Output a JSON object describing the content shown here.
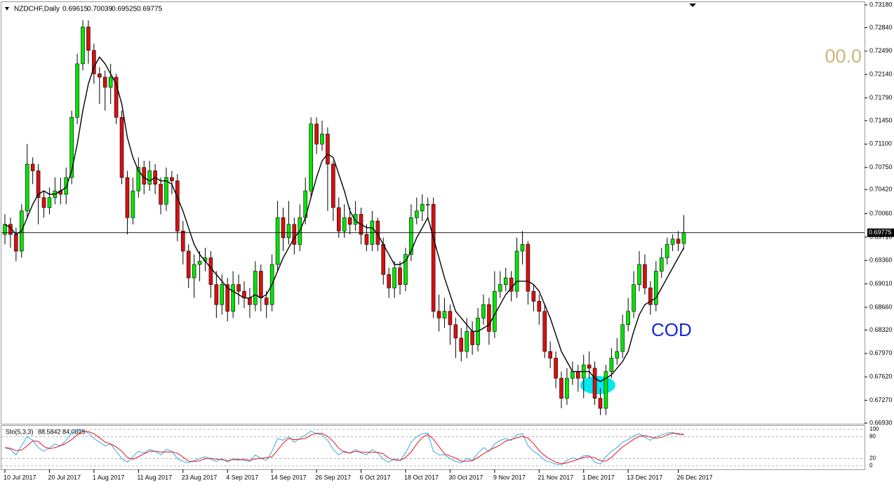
{
  "chart_data": {
    "type": "candlestick",
    "title": "NZDCHF,Daily",
    "categories": [
      "10 Jul 2017",
      null,
      null,
      null,
      null,
      null,
      null,
      null,
      "20 Jul 2017",
      null,
      null,
      null,
      null,
      null,
      null,
      null,
      "1 Aug 2017",
      null,
      null,
      null,
      null,
      null,
      null,
      null,
      "11 Aug 2017",
      null,
      null,
      null,
      null,
      null,
      null,
      null,
      "23 Aug 2017",
      null,
      null,
      null,
      null,
      null,
      null,
      null,
      "4 Sep 2017",
      null,
      null,
      null,
      null,
      null,
      null,
      null,
      "14 Sep 2017",
      null,
      null,
      null,
      null,
      null,
      null,
      null,
      "26 Sep 2017",
      null,
      null,
      null,
      null,
      null,
      null,
      null,
      "6 Oct 2017",
      null,
      null,
      null,
      null,
      null,
      null,
      null,
      "18 Oct 2017",
      null,
      null,
      null,
      null,
      null,
      null,
      null,
      "30 Oct 2017",
      null,
      null,
      null,
      null,
      null,
      null,
      null,
      "9 Nov 2017",
      null,
      null,
      null,
      null,
      null,
      null,
      null,
      "21 Nov 2017",
      null,
      null,
      null,
      null,
      null,
      null,
      null,
      "1 Dec 2017",
      null,
      null,
      null,
      null,
      null,
      null,
      null,
      "13 Dec 2017",
      null,
      null,
      null,
      null,
      null,
      null,
      null,
      null,
      "26 Dec 2017",
      null
    ],
    "open": [
      0.6975,
      0.699,
      0.6975,
      0.695,
      0.701,
      0.708,
      0.707,
      0.703,
      0.7015,
      0.703,
      0.704,
      0.7035,
      0.706,
      0.715,
      0.723,
      0.7285,
      0.725,
      0.7215,
      0.721,
      0.7195,
      0.721,
      0.715,
      0.706,
      0.7,
      0.704,
      0.7075,
      0.705,
      0.707,
      0.705,
      0.702,
      0.706,
      0.7055,
      0.698,
      0.695,
      0.691,
      0.693,
      0.6935,
      0.694,
      0.69,
      0.687,
      0.69,
      0.686,
      0.69,
      0.689,
      0.688,
      0.687,
      0.692,
      0.688,
      0.687,
      0.693,
      0.7,
      0.697,
      0.699,
      0.696,
      0.7,
      0.704,
      0.714,
      0.711,
      0.7125,
      0.708,
      0.7015,
      0.698,
      0.7,
      0.699,
      0.7005,
      0.6975,
      0.696,
      0.6995,
      0.696,
      0.6915,
      0.6895,
      0.6925,
      0.69,
      0.6945,
      0.7,
      0.701,
      0.702,
      0.702,
      0.686,
      0.685,
      0.686,
      0.684,
      0.682,
      0.68,
      0.683,
      0.681,
      0.685,
      0.687,
      0.683,
      0.689,
      0.69,
      0.691,
      0.689,
      0.695,
      0.696,
      0.689,
      0.6875,
      0.686,
      0.68,
      0.679,
      0.676,
      0.673,
      0.676,
      0.677,
      0.676,
      0.678,
      0.6775,
      0.673,
      0.6715,
      0.677,
      0.679,
      0.68,
      0.684,
      0.686,
      0.69,
      0.693,
      0.6895,
      0.687,
      0.692,
      0.694,
      0.696,
      0.6968,
      0.69615
    ],
    "high": [
      0.7005,
      0.7,
      0.6985,
      0.702,
      0.711,
      0.709,
      0.708,
      0.704,
      0.7045,
      0.706,
      0.706,
      0.7075,
      0.716,
      0.7245,
      0.7295,
      0.7295,
      0.726,
      0.7225,
      0.722,
      0.723,
      0.7215,
      0.716,
      0.707,
      0.706,
      0.709,
      0.7085,
      0.7085,
      0.708,
      0.706,
      0.7075,
      0.707,
      0.7065,
      0.6995,
      0.696,
      0.6945,
      0.695,
      0.6955,
      0.695,
      0.692,
      0.6915,
      0.691,
      0.692,
      0.6915,
      0.6905,
      0.6895,
      0.6935,
      0.693,
      0.689,
      0.6945,
      0.7025,
      0.7015,
      0.7025,
      0.7,
      0.702,
      0.706,
      0.715,
      0.715,
      0.7145,
      0.7135,
      0.7085,
      0.703,
      0.702,
      0.7015,
      0.7025,
      0.7015,
      0.699,
      0.701,
      0.7,
      0.697,
      0.6925,
      0.6935,
      0.6935,
      0.6955,
      0.702,
      0.703,
      0.7035,
      0.703,
      0.703,
      0.6885,
      0.688,
      0.687,
      0.685,
      0.6835,
      0.685,
      0.6845,
      0.6865,
      0.6885,
      0.688,
      0.692,
      0.692,
      0.6925,
      0.692,
      0.697,
      0.698,
      0.6965,
      0.69,
      0.6885,
      0.687,
      0.6815,
      0.68,
      0.677,
      0.6775,
      0.6785,
      0.678,
      0.6795,
      0.68,
      0.6785,
      0.6745,
      0.678,
      0.6805,
      0.682,
      0.6855,
      0.688,
      0.692,
      0.695,
      0.6945,
      0.6905,
      0.6935,
      0.6955,
      0.697,
      0.6975,
      0.698,
      0.70039
    ],
    "low": [
      0.696,
      0.6955,
      0.6935,
      0.694,
      0.7,
      0.705,
      0.699,
      0.7,
      0.7005,
      0.702,
      0.702,
      0.702,
      0.705,
      0.714,
      0.722,
      0.723,
      0.72,
      0.717,
      0.716,
      0.717,
      0.714,
      0.705,
      0.6975,
      0.699,
      0.703,
      0.7035,
      0.704,
      0.7035,
      0.7005,
      0.701,
      0.7035,
      0.6965,
      0.693,
      0.6895,
      0.688,
      0.6905,
      0.692,
      0.688,
      0.685,
      0.6855,
      0.6845,
      0.685,
      0.687,
      0.6865,
      0.685,
      0.686,
      0.686,
      0.685,
      0.686,
      0.692,
      0.695,
      0.696,
      0.6945,
      0.695,
      0.699,
      0.703,
      0.7095,
      0.71,
      0.701,
      0.6995,
      0.697,
      0.697,
      0.6975,
      0.698,
      0.696,
      0.695,
      0.695,
      0.695,
      0.69,
      0.688,
      0.688,
      0.6885,
      0.689,
      0.6935,
      0.699,
      0.6995,
      0.7,
      0.685,
      0.683,
      0.6835,
      0.681,
      0.679,
      0.6785,
      0.679,
      0.6795,
      0.68,
      0.684,
      0.681,
      0.682,
      0.688,
      0.689,
      0.6875,
      0.688,
      0.693,
      0.687,
      0.686,
      0.684,
      0.679,
      0.6775,
      0.6745,
      0.6715,
      0.672,
      0.675,
      0.674,
      0.673,
      0.676,
      0.672,
      0.6705,
      0.6705,
      0.676,
      0.678,
      0.679,
      0.683,
      0.685,
      0.689,
      0.6885,
      0.6855,
      0.686,
      0.691,
      0.693,
      0.695,
      0.695,
      0.69525
    ],
    "close": [
      0.699,
      0.6975,
      0.695,
      0.701,
      0.708,
      0.707,
      0.703,
      0.7015,
      0.703,
      0.704,
      0.7035,
      0.706,
      0.715,
      0.723,
      0.7285,
      0.725,
      0.7215,
      0.721,
      0.7195,
      0.721,
      0.715,
      0.706,
      0.7,
      0.704,
      0.7075,
      0.705,
      0.707,
      0.705,
      0.702,
      0.706,
      0.7055,
      0.698,
      0.695,
      0.691,
      0.693,
      0.6935,
      0.694,
      0.69,
      0.687,
      0.69,
      0.686,
      0.69,
      0.689,
      0.688,
      0.687,
      0.692,
      0.688,
      0.687,
      0.693,
      0.7,
      0.697,
      0.699,
      0.696,
      0.7,
      0.704,
      0.714,
      0.711,
      0.7125,
      0.708,
      0.7015,
      0.698,
      0.7,
      0.699,
      0.7005,
      0.6975,
      0.696,
      0.6995,
      0.696,
      0.6915,
      0.6895,
      0.6925,
      0.69,
      0.6945,
      0.7,
      0.701,
      0.702,
      0.702,
      0.686,
      0.685,
      0.686,
      0.684,
      0.682,
      0.68,
      0.683,
      0.681,
      0.685,
      0.687,
      0.683,
      0.689,
      0.69,
      0.691,
      0.689,
      0.695,
      0.696,
      0.689,
      0.6875,
      0.686,
      0.68,
      0.679,
      0.676,
      0.673,
      0.676,
      0.677,
      0.676,
      0.678,
      0.6775,
      0.673,
      0.6715,
      0.677,
      0.679,
      0.68,
      0.684,
      0.686,
      0.69,
      0.693,
      0.6895,
      0.687,
      0.692,
      0.694,
      0.696,
      0.6968,
      0.69615,
      0.69775
    ],
    "up_color": "#00e600",
    "down_color": "#d81010",
    "ma": {
      "color": "#000000",
      "values": [
        0.699,
        0.6985,
        0.6975,
        0.698,
        0.7,
        0.702,
        0.7035,
        0.704,
        0.7035,
        0.7035,
        0.704,
        0.7045,
        0.707,
        0.711,
        0.716,
        0.72,
        0.7225,
        0.724,
        0.723,
        0.7215,
        0.72,
        0.717,
        0.712,
        0.709,
        0.707,
        0.706,
        0.7055,
        0.706,
        0.7055,
        0.7055,
        0.705,
        0.703,
        0.701,
        0.6985,
        0.696,
        0.6945,
        0.6935,
        0.6925,
        0.6915,
        0.6905,
        0.6895,
        0.689,
        0.6885,
        0.688,
        0.688,
        0.6885,
        0.688,
        0.6885,
        0.69,
        0.692,
        0.694,
        0.6955,
        0.697,
        0.698,
        0.7,
        0.703,
        0.706,
        0.7085,
        0.7095,
        0.709,
        0.7065,
        0.704,
        0.701,
        0.6995,
        0.699,
        0.6985,
        0.6985,
        0.6975,
        0.696,
        0.6945,
        0.693,
        0.693,
        0.6935,
        0.695,
        0.697,
        0.6985,
        0.7,
        0.697,
        0.694,
        0.691,
        0.6885,
        0.686,
        0.685,
        0.684,
        0.683,
        0.683,
        0.6835,
        0.684,
        0.6855,
        0.687,
        0.6885,
        0.6895,
        0.6905,
        0.6905,
        0.6905,
        0.69,
        0.689,
        0.687,
        0.685,
        0.6825,
        0.68,
        0.6785,
        0.677,
        0.677,
        0.677,
        0.677,
        0.676,
        0.6755,
        0.676,
        0.6765,
        0.6775,
        0.6785,
        0.68,
        0.683,
        0.6855,
        0.687,
        0.6875,
        0.688,
        0.6895,
        0.691,
        0.6925,
        0.694,
        0.6955
      ]
    },
    "ylim": [
      0.6693,
      0.7318
    ],
    "yticks": [
      {
        "value": 0.7318,
        "label": "0.73180"
      },
      {
        "value": 0.7284,
        "label": "0.72840"
      },
      {
        "value": 0.7249,
        "label": "0.72490"
      },
      {
        "value": 0.7214,
        "label": "0.72140"
      },
      {
        "value": 0.7179,
        "label": "0.71790"
      },
      {
        "value": 0.7145,
        "label": "0.71450"
      },
      {
        "value": 0.711,
        "label": "0.71100"
      },
      {
        "value": 0.7075,
        "label": "0.70750"
      },
      {
        "value": 0.7042,
        "label": "0.70420"
      },
      {
        "value": 0.7006,
        "label": "0.70060"
      },
      {
        "value": 0.6971,
        "label": "0.69710"
      },
      {
        "value": 0.6936,
        "label": "0.69360"
      },
      {
        "value": 0.6901,
        "label": "0.69010"
      },
      {
        "value": 0.6866,
        "label": "0.68660"
      },
      {
        "value": 0.6832,
        "label": "0.68320"
      },
      {
        "value": 0.6797,
        "label": "0.67970"
      },
      {
        "value": 0.6762,
        "label": "0.67620"
      },
      {
        "value": 0.6727,
        "label": "0.67270"
      },
      {
        "value": 0.6693,
        "label": "0.66930"
      }
    ],
    "annotations": [
      "00.0",
      "COD"
    ],
    "indicator": {
      "name": "Sto(5,3,3)",
      "series": [
        {
          "color": "#3aa8e8",
          "values": [
            50,
            45,
            30,
            55,
            80,
            70,
            50,
            40,
            50,
            60,
            55,
            70,
            90,
            95,
            98,
            90,
            75,
            65,
            55,
            60,
            40,
            20,
            10,
            25,
            40,
            35,
            45,
            40,
            30,
            45,
            40,
            20,
            12,
            8,
            15,
            20,
            25,
            18,
            12,
            20,
            10,
            20,
            18,
            15,
            12,
            30,
            20,
            15,
            40,
            75,
            70,
            80,
            65,
            75,
            85,
            95,
            88,
            85,
            70,
            45,
            30,
            40,
            35,
            45,
            35,
            30,
            45,
            35,
            18,
            10,
            20,
            15,
            35,
            65,
            80,
            88,
            90,
            40,
            30,
            30,
            20,
            12,
            8,
            20,
            15,
            35,
            50,
            40,
            60,
            70,
            75,
            70,
            85,
            88,
            55,
            40,
            30,
            15,
            10,
            5,
            3,
            15,
            22,
            18,
            28,
            28,
            10,
            5,
            25,
            40,
            50,
            65,
            72,
            82,
            88,
            78,
            70,
            80,
            85,
            90,
            92,
            85,
            88.5842
          ]
        },
        {
          "color": "#e01818",
          "values": [
            50,
            48,
            42,
            43,
            55,
            68,
            67,
            53,
            47,
            50,
            55,
            62,
            72,
            85,
            94,
            94,
            88,
            77,
            65,
            60,
            52,
            40,
            23,
            18,
            25,
            33,
            40,
            40,
            38,
            38,
            38,
            35,
            24,
            13,
            12,
            14,
            20,
            21,
            18,
            17,
            14,
            17,
            16,
            18,
            15,
            19,
            21,
            22,
            25,
            43,
            62,
            75,
            72,
            73,
            75,
            85,
            89,
            89,
            81,
            67,
            48,
            38,
            35,
            40,
            38,
            37,
            37,
            37,
            33,
            21,
            16,
            15,
            23,
            38,
            60,
            78,
            86,
            73,
            53,
            33,
            27,
            21,
            13,
            13,
            14,
            23,
            33,
            42,
            50,
            57,
            68,
            72,
            77,
            81,
            76,
            61,
            42,
            28,
            18,
            10,
            6,
            8,
            13,
            18,
            23,
            25,
            22,
            14,
            13,
            23,
            38,
            52,
            62,
            73,
            81,
            83,
            79,
            76,
            78,
            85,
            89,
            89,
            84.0829
          ]
        }
      ],
      "ylim": [
        0,
        100
      ],
      "yticks": [
        100,
        80,
        20,
        0
      ]
    }
  }
}
